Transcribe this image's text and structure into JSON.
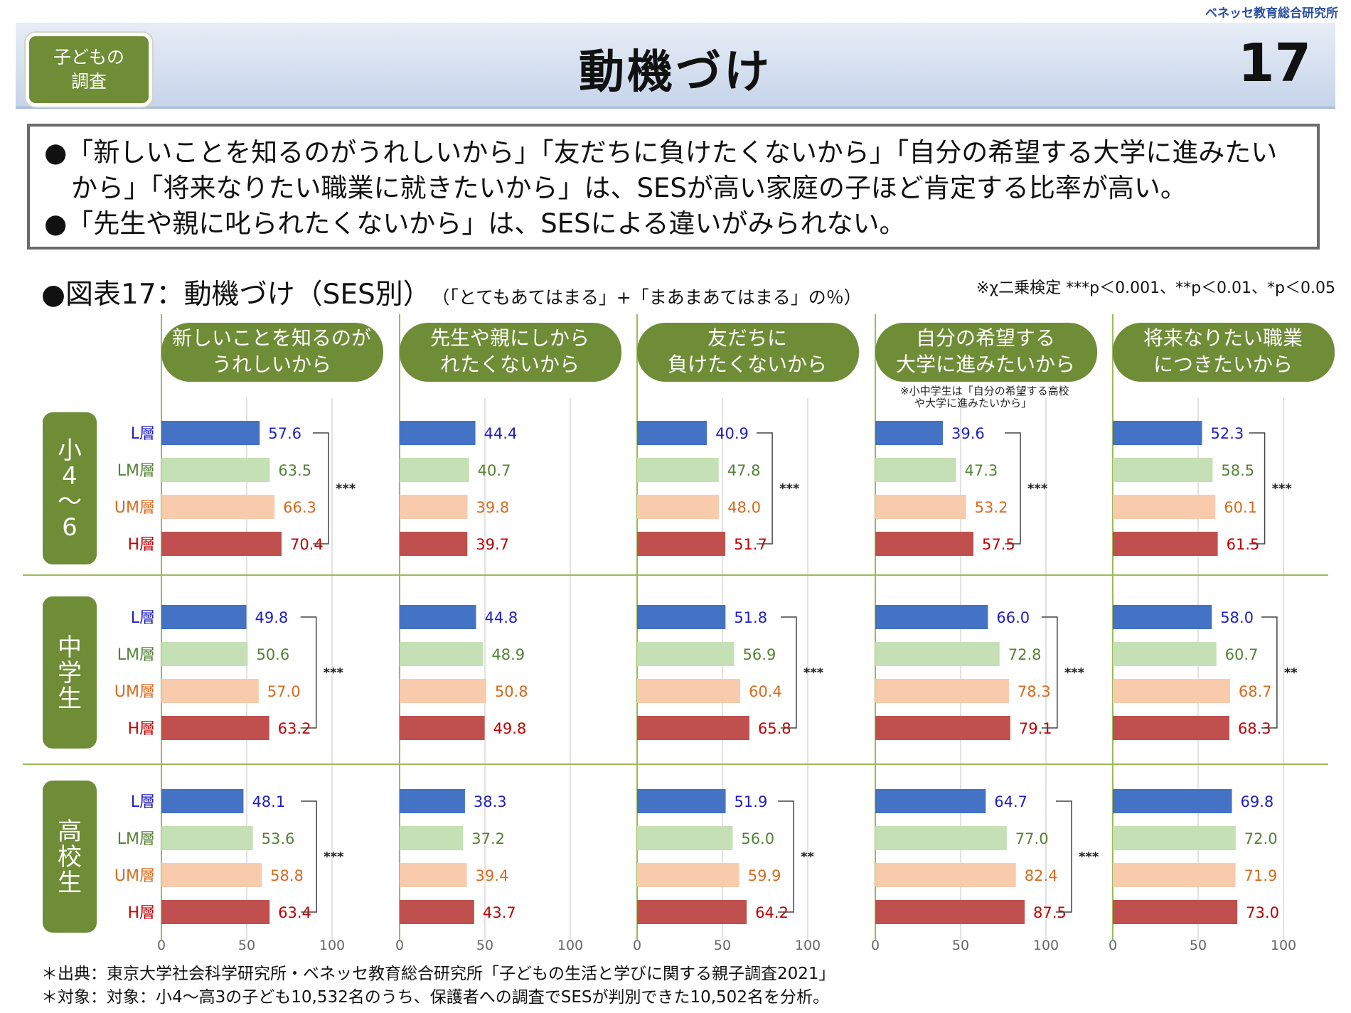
{
  "brand": "ベネッセ教育総合研究所",
  "header": {
    "badge_line1": "子どもの",
    "badge_line2": "調査",
    "title": "動機づけ",
    "page_number": "17"
  },
  "summary": {
    "line1": "●「新しいことを知るのがうれしいから」「友だちに負けたくないから」「自分の希望する大学に進みたい",
    "line2": "から」「将来なりたい職業に就きたいから」は、SESが高い家庭の子ほど肯定する比率が高い。",
    "line3": "●「先生や親に叱られたくないから」は、SESによる違いがみられない。"
  },
  "figure": {
    "caption": "●図表17：動機づけ（SES別）",
    "caption_small": "（「とてもあてはまる」+「まあまあてはまる」の％）",
    "note": "※χ二乗検定 ***p＜0.001、**p＜0.01、*p＜0.05"
  },
  "colors": {
    "L": "#4472c4",
    "LM": "#c5e0b4",
    "UM": "#f8cbad",
    "H": "#c0504d",
    "L_text": "#1f1fc0",
    "LM_text": "#548235",
    "UM_text": "#d86a1e",
    "H_text": "#c00000",
    "olive": "#6f8c36"
  },
  "chart_data": {
    "type": "bar",
    "orientation": "horizontal",
    "xlim": [
      0,
      100
    ],
    "xticks": [
      0,
      50,
      100
    ],
    "layers": [
      "L層",
      "LM層",
      "UM層",
      "H層"
    ],
    "categories": [
      {
        "title_line1": "新しいことを知るのが",
        "title_line2": "うれしいから"
      },
      {
        "title_line1": "先生や親にしから",
        "title_line2": "れたくないから"
      },
      {
        "title_line1": "友だちに",
        "title_line2": "負けたくないから"
      },
      {
        "title_line1": "自分の希望する",
        "title_line2": "大学に進みたいから",
        "note_line1": "※小中学生は「自分の希望する高校",
        "note_line2": "や大学に進みたいから」"
      },
      {
        "title_line1": "将来なりたい職業",
        "title_line2": "につきたいから"
      }
    ],
    "groups": [
      {
        "label": "小4〜6",
        "values": [
          [
            57.6,
            63.5,
            66.3,
            70.4
          ],
          [
            44.4,
            40.7,
            39.8,
            39.7
          ],
          [
            40.9,
            47.8,
            48.0,
            51.7
          ],
          [
            39.6,
            47.3,
            53.2,
            57.5
          ],
          [
            52.3,
            58.5,
            60.1,
            61.5
          ]
        ],
        "significance": [
          "***",
          "",
          "***",
          "***",
          "***"
        ]
      },
      {
        "label": "中学生",
        "values": [
          [
            49.8,
            50.6,
            57.0,
            63.2
          ],
          [
            44.8,
            48.9,
            50.8,
            49.8
          ],
          [
            51.8,
            56.9,
            60.4,
            65.8
          ],
          [
            66.0,
            72.8,
            78.3,
            79.1
          ],
          [
            58.0,
            60.7,
            68.7,
            68.3
          ]
        ],
        "significance": [
          "***",
          "",
          "***",
          "***",
          "**"
        ]
      },
      {
        "label": "高校生",
        "values": [
          [
            48.1,
            53.6,
            58.8,
            63.4
          ],
          [
            38.3,
            37.2,
            39.4,
            43.7
          ],
          [
            51.9,
            56.0,
            59.9,
            64.2
          ],
          [
            64.7,
            77.0,
            82.4,
            87.5
          ],
          [
            69.8,
            72.0,
            71.9,
            73.0
          ]
        ],
        "significance": [
          "***",
          "",
          "**",
          "***",
          ""
        ]
      }
    ]
  },
  "footer": {
    "source": "＊出典：東京大学社会科学研究所・ベネッセ教育総合研究所「子どもの生活と学びに関する親子調査2021」",
    "target": "＊対象：対象：小4〜高3の子ども10,532名のうち、保護者への調査でSESが判別できた10,502名を分析。"
  }
}
